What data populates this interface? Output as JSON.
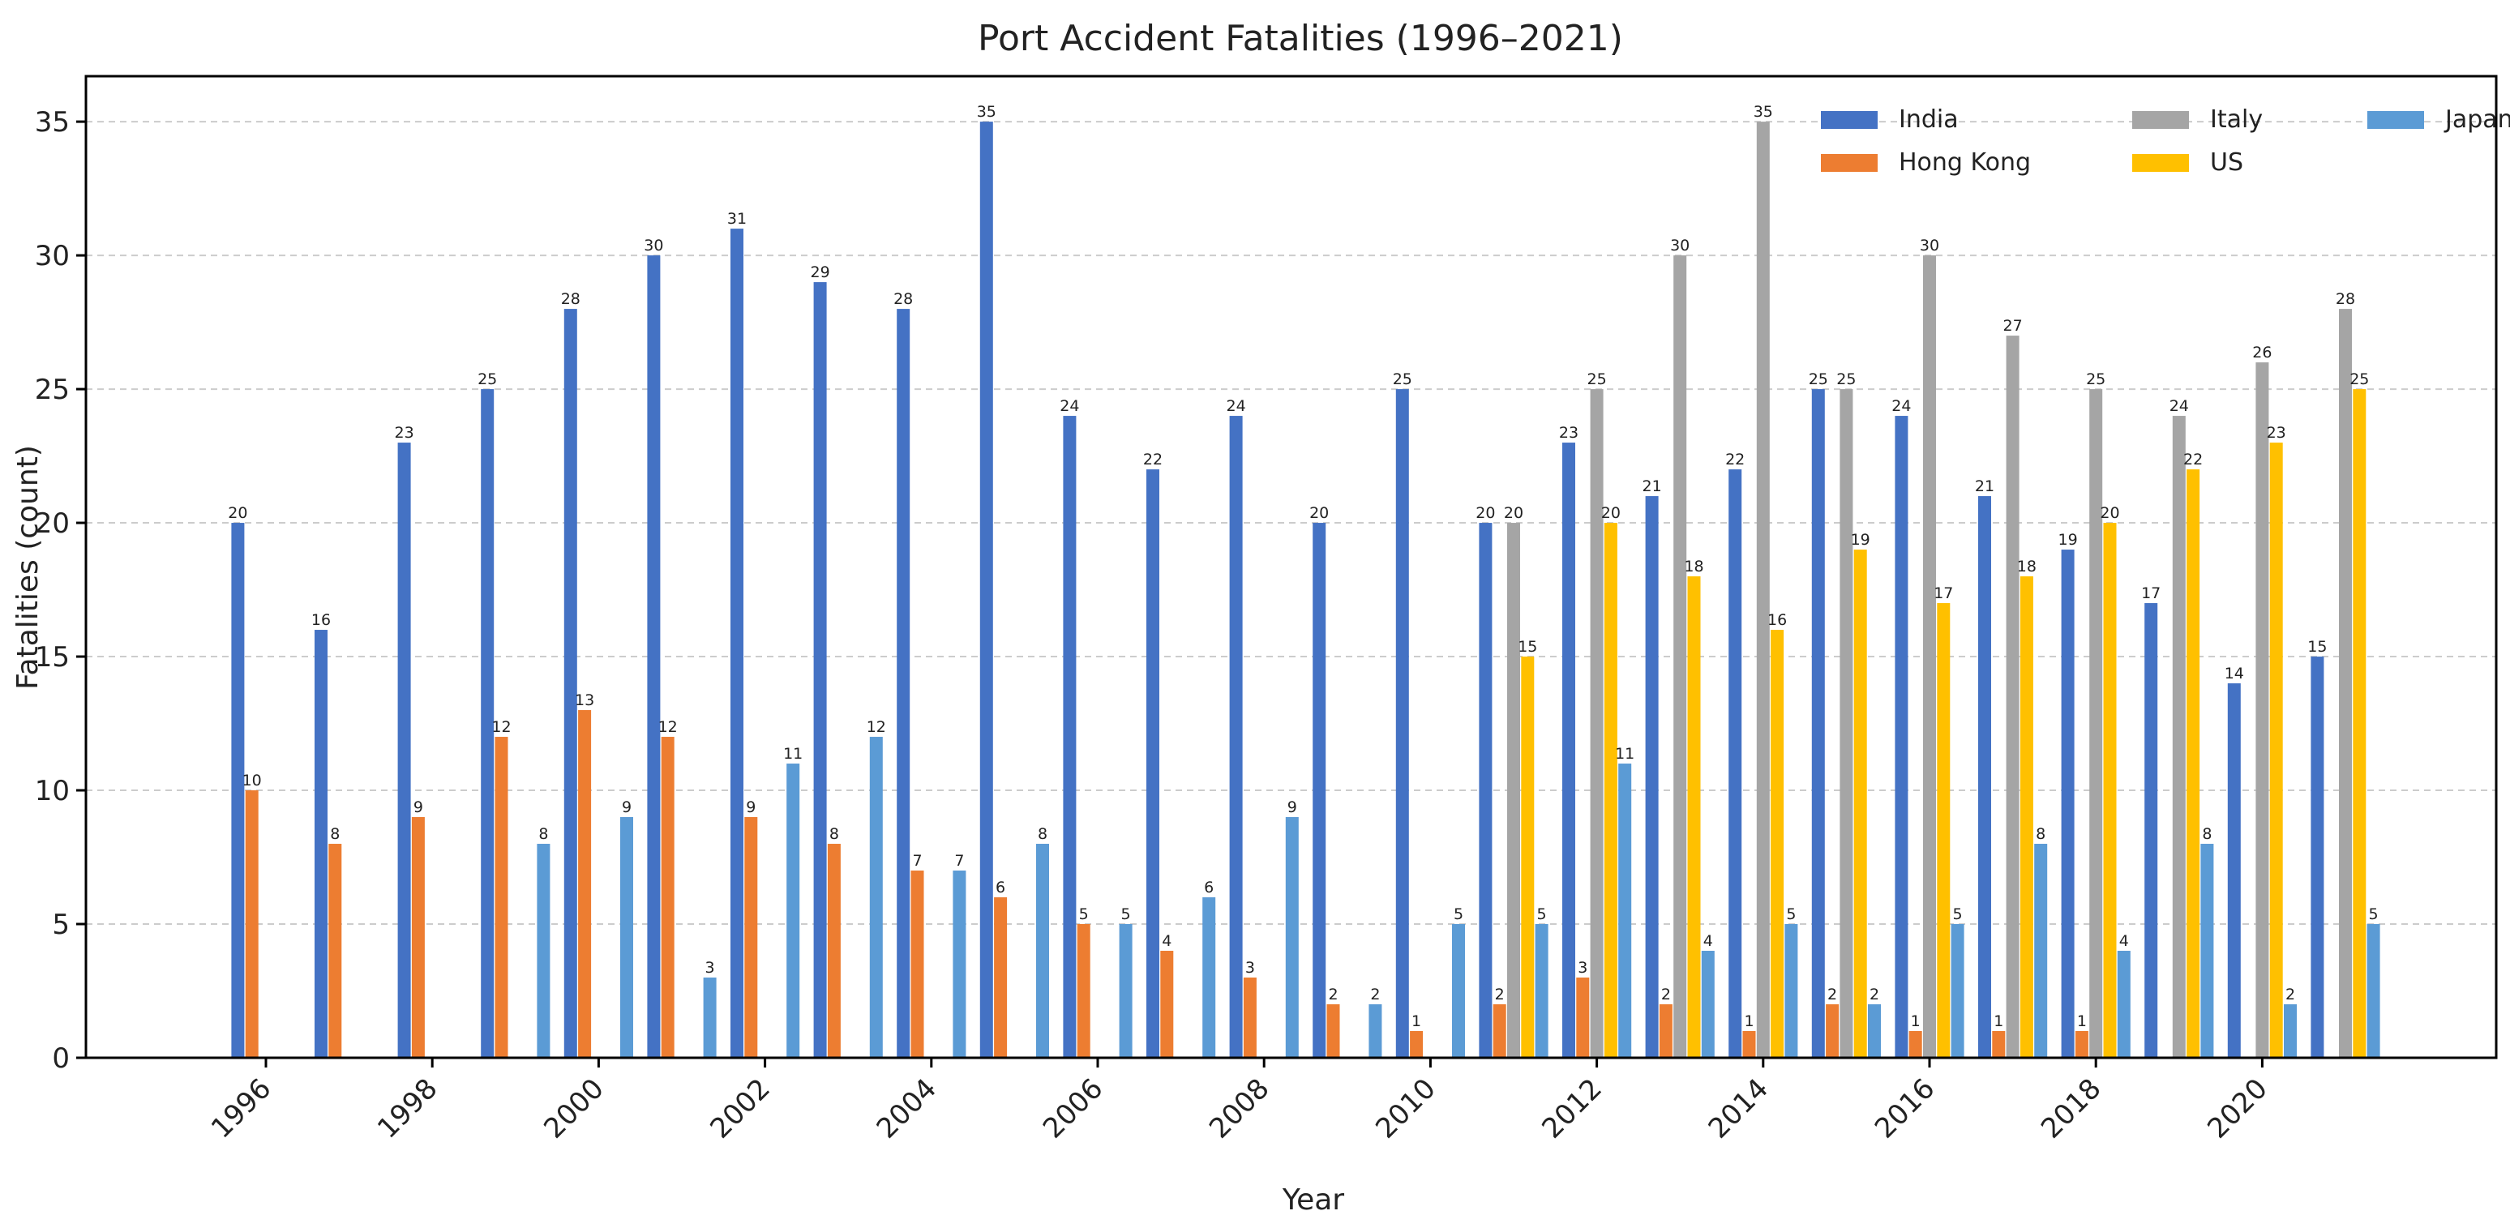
{
  "chart_data": {
    "type": "bar",
    "title": "Port Accident Fatalities (1996–2021)",
    "xlabel": "Year",
    "ylabel": "Fatalities (count)",
    "ylim": [
      0,
      36.7
    ],
    "yticks": [
      "0",
      "5",
      "10",
      "15",
      "20",
      "25",
      "30",
      "35"
    ],
    "x_tick_labels": [
      "1996",
      "1998",
      "2000",
      "2002",
      "2004",
      "2006",
      "2008",
      "2010",
      "2012",
      "2014",
      "2016",
      "2018",
      "2020"
    ],
    "grid": "y-dashed",
    "legend_position": "top-right",
    "categories": [
      1996,
      1997,
      1998,
      1999,
      2000,
      2001,
      2002,
      2003,
      2004,
      2005,
      2006,
      2007,
      2008,
      2009,
      2010,
      2011,
      2012,
      2013,
      2014,
      2015,
      2016,
      2017,
      2018,
      2019,
      2020,
      2021
    ],
    "series": [
      {
        "name": "India",
        "color": "#4472c4",
        "values": [
          20,
          16,
          23,
          25,
          28,
          30,
          31,
          29,
          28,
          35,
          24,
          22,
          24,
          20,
          25,
          20,
          23,
          21,
          22,
          25,
          24,
          21,
          19,
          17,
          14,
          15
        ]
      },
      {
        "name": "Hong Kong",
        "color": "#ed7d31",
        "values": [
          10,
          8,
          9,
          12,
          13,
          12,
          9,
          8,
          7,
          6,
          5,
          4,
          3,
          2,
          1,
          2,
          3,
          2,
          1,
          2,
          1,
          1,
          1,
          null,
          null,
          null
        ]
      },
      {
        "name": "Italy",
        "color": "#a5a5a5",
        "values": [
          null,
          null,
          null,
          null,
          null,
          null,
          null,
          null,
          null,
          null,
          null,
          null,
          null,
          null,
          null,
          20,
          25,
          30,
          35,
          25,
          30,
          27,
          25,
          24,
          26,
          28
        ]
      },
      {
        "name": "US",
        "color": "#ffc000",
        "values": [
          null,
          null,
          null,
          null,
          null,
          null,
          null,
          null,
          null,
          null,
          null,
          null,
          null,
          null,
          null,
          15,
          20,
          18,
          16,
          19,
          17,
          18,
          20,
          22,
          23,
          25
        ]
      },
      {
        "name": "Japan",
        "color": "#5b9bd5",
        "values": [
          null,
          null,
          null,
          8,
          9,
          3,
          11,
          12,
          7,
          8,
          5,
          6,
          9,
          2,
          5,
          5,
          11,
          4,
          5,
          2,
          5,
          8,
          4,
          8,
          2,
          5
        ]
      }
    ],
    "legend_order": [
      "India",
      "Hong Kong",
      "Italy",
      "US",
      "Japan"
    ]
  }
}
